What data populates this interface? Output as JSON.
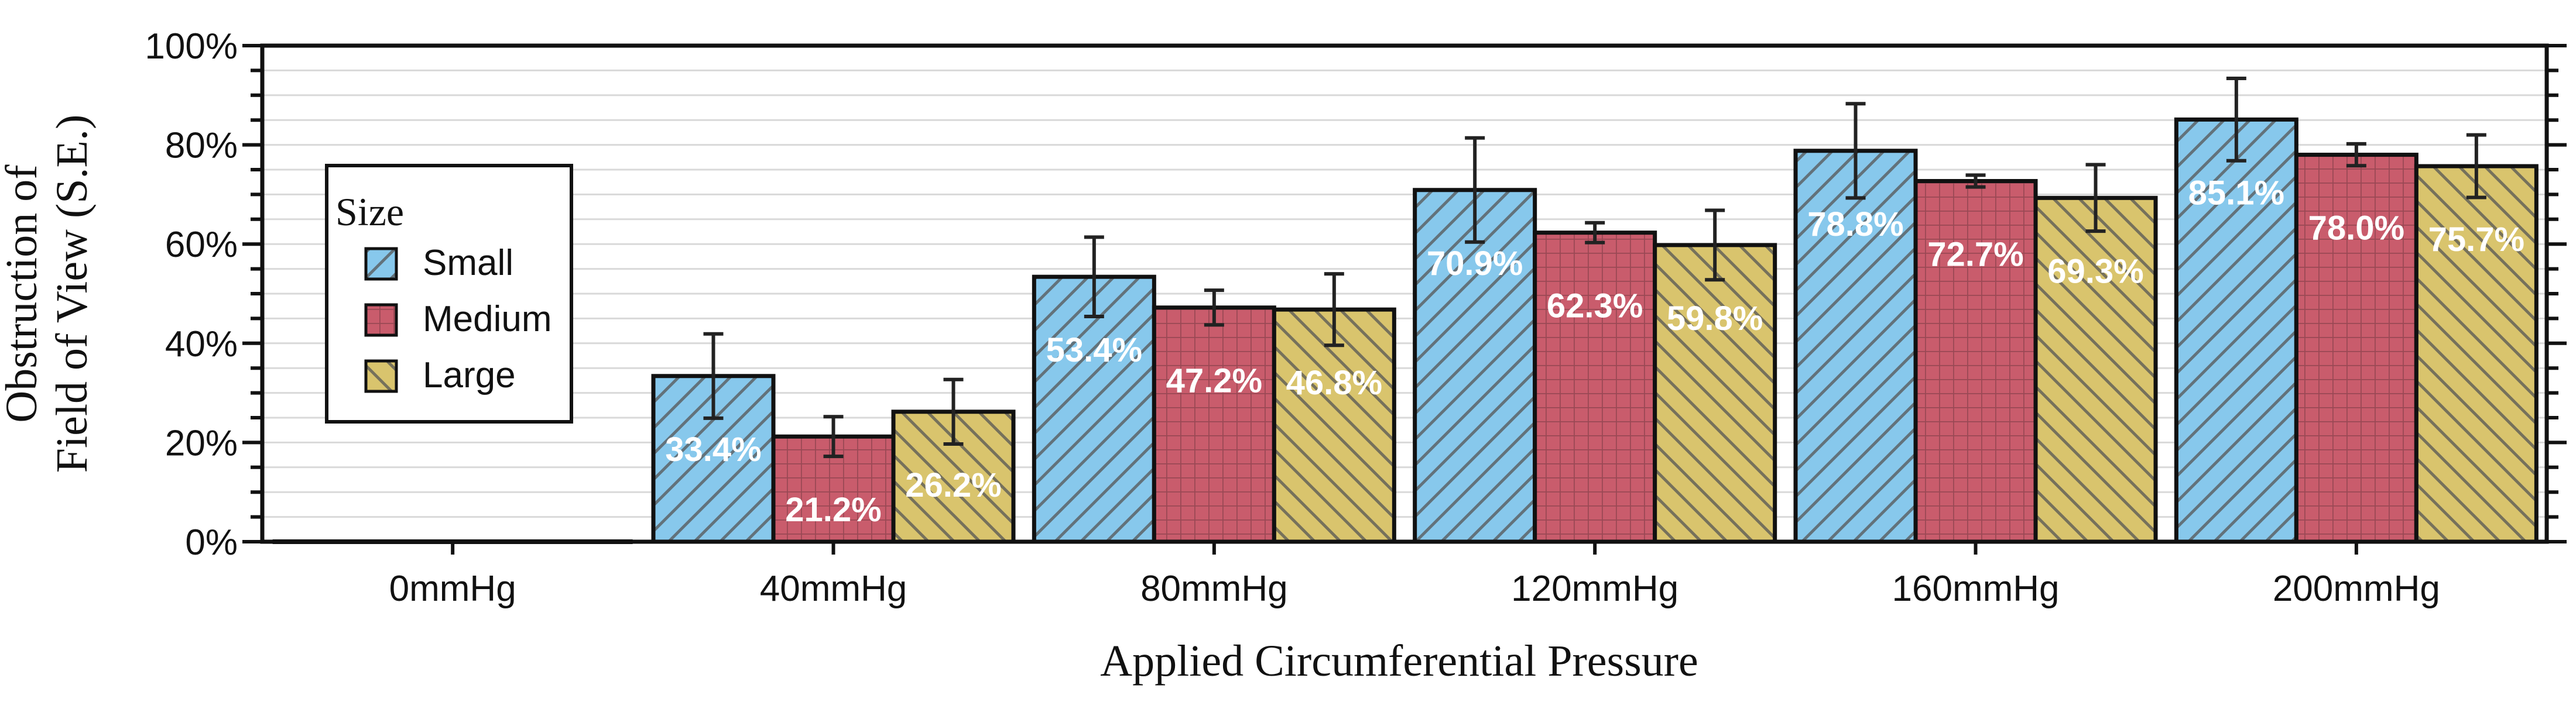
{
  "chart_data": {
    "type": "bar",
    "categories": [
      "0mmHg",
      "40mmHg",
      "80mmHg",
      "120mmHg",
      "160mmHg",
      "200mmHg"
    ],
    "series": [
      {
        "name": "Small",
        "color": "#87c8ec",
        "pattern": "diagonal",
        "values": [
          0,
          33.4,
          53.4,
          70.9,
          78.8,
          85.1
        ],
        "errors": [
          0,
          8.5,
          8.0,
          10.5,
          9.5,
          8.3
        ],
        "labels": [
          "",
          "33.4%",
          "53.4%",
          "70.9%",
          "78.8%",
          "85.1%"
        ]
      },
      {
        "name": "Medium",
        "color": "#c95c6c",
        "pattern": "grid",
        "values": [
          0,
          21.2,
          47.2,
          62.3,
          72.7,
          78.0
        ],
        "errors": [
          0,
          4.0,
          3.5,
          2.0,
          1.2,
          2.2
        ],
        "labels": [
          "",
          "21.2%",
          "47.2%",
          "62.3%",
          "72.7%",
          "78.0%"
        ]
      },
      {
        "name": "Large",
        "color": "#d9c46d",
        "pattern": "backslash",
        "values": [
          0,
          26.2,
          46.8,
          59.8,
          69.3,
          75.7
        ],
        "errors": [
          0,
          6.5,
          7.2,
          7.0,
          6.7,
          6.3
        ],
        "labels": [
          "",
          "26.2%",
          "46.8%",
          "59.8%",
          "69.3%",
          "75.7%"
        ]
      }
    ],
    "xlabel": "Applied Circumferential Pressure",
    "ylabel_lines": [
      "Obstruction of",
      "Field of View (S.E.)"
    ],
    "ylim": [
      0,
      100
    ],
    "yticks": [
      0,
      20,
      40,
      60,
      80,
      100
    ],
    "ytick_labels": [
      "0%",
      "20%",
      "40%",
      "60%",
      "80%",
      "100%"
    ],
    "grid": true,
    "legend": {
      "title": "Size",
      "placement": "upper-left"
    }
  }
}
